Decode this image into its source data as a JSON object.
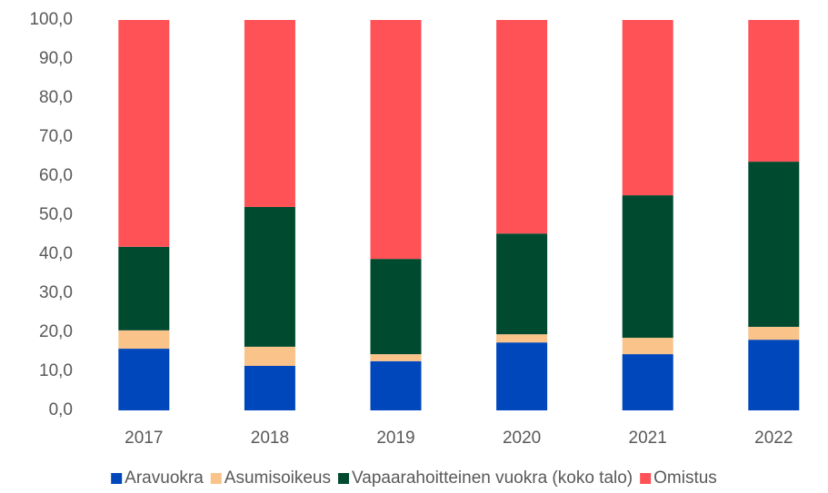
{
  "chart_data": {
    "type": "stacked_bar",
    "categories": [
      "2017",
      "2018",
      "2019",
      "2020",
      "2021",
      "2022"
    ],
    "series": [
      {
        "name": "Aravuokra",
        "color": "#0047BB",
        "values": [
          15.8,
          11.4,
          12.6,
          17.4,
          14.4,
          18.1
        ]
      },
      {
        "name": "Asumisoikeus",
        "color": "#F9C38A",
        "values": [
          4.7,
          4.9,
          1.8,
          2.1,
          4.2,
          3.3
        ]
      },
      {
        "name": "Vapaarahoitteinen vuokra (koko talo)",
        "color": "#004B30",
        "values": [
          21.4,
          35.8,
          24.4,
          25.8,
          36.5,
          42.3
        ]
      },
      {
        "name": "Omistus",
        "color": "#FF5257",
        "values": [
          58.1,
          47.9,
          61.2,
          54.7,
          44.9,
          36.3
        ]
      }
    ],
    "ylim": [
      0,
      100
    ],
    "yticks": [
      {
        "value": 0,
        "label": "0,0"
      },
      {
        "value": 10,
        "label": "10,0"
      },
      {
        "value": 20,
        "label": "20,0"
      },
      {
        "value": 30,
        "label": "30,0"
      },
      {
        "value": 40,
        "label": "40,0"
      },
      {
        "value": 50,
        "label": "50,0"
      },
      {
        "value": 60,
        "label": "60,0"
      },
      {
        "value": 70,
        "label": "70,0"
      },
      {
        "value": 80,
        "label": "80,0"
      },
      {
        "value": 90,
        "label": "90,0"
      },
      {
        "value": 100,
        "label": "100,0"
      }
    ],
    "grid": false,
    "legend": "bottom"
  }
}
